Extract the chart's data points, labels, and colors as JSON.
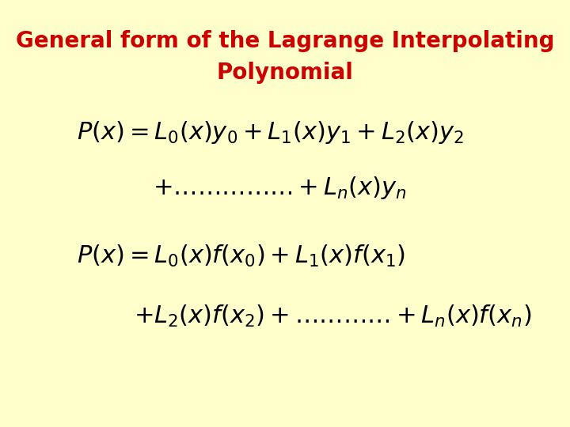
{
  "background_color": "#FFFFCC",
  "title_line1": "General form of the Lagrange Interpolating",
  "title_line2": "Polynomial",
  "title_color": "#CC0000",
  "title_fontsize": 20,
  "title_bold": true,
  "eq1_line1": "$P(x)= L_0(x)y_0 + L_1(x)y_1 + L_2(x)y_2$",
  "eq1_line2": "$+\\ldots\\ldots\\ldots\\ldots+ L_n(x)y_n$",
  "eq2_line1": "$P(x)= L_0(x)f(x_0)+ L_1(x)f(x_1)$",
  "eq2_line2": "$+ L_2(x)f(x_2)+\\ldots\\ldots\\ldots\\ldots+ L_n(x)f(x_n)$",
  "eq_color": "#000000",
  "eq_fontsize": 22,
  "figsize": [
    7.2,
    5.4
  ],
  "dpi": 100
}
